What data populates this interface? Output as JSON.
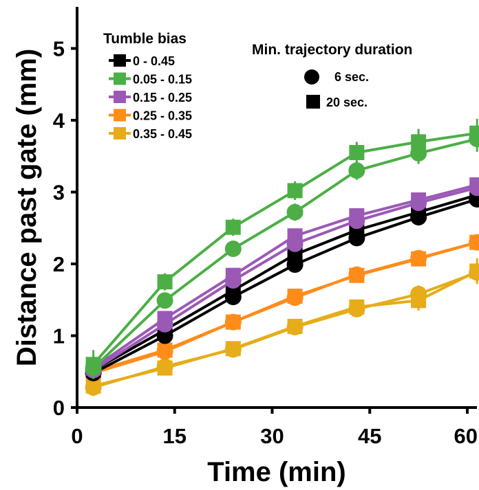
{
  "chart_data": {
    "type": "line",
    "title": "",
    "xlabel": "Time (min)",
    "ylabel": "Distance past gate (mm)",
    "xlim": [
      0,
      62
    ],
    "ylim": [
      0,
      5.5
    ],
    "xticks": [
      0,
      15,
      30,
      45,
      60
    ],
    "yticks": [
      0,
      1,
      2,
      3,
      4,
      5
    ],
    "grid": false,
    "x": [
      2.5,
      13.5,
      24,
      33.5,
      43,
      52.5,
      61.5
    ],
    "legend_tumble": {
      "title": "Tumble bias",
      "placement": "top-left"
    },
    "legend_duration": {
      "title": "Min. trajectory duration",
      "placement": "top-right",
      "entries": [
        {
          "label": "6 sec.",
          "marker": "circle"
        },
        {
          "label": "20 sec.",
          "marker": "square"
        }
      ]
    },
    "series": [
      {
        "name": "0 - 0.45",
        "color": "#000000",
        "marker": "circle",
        "values": [
          0.48,
          1.0,
          1.54,
          1.99,
          2.36,
          2.65,
          2.9
        ],
        "err": [
          0.06,
          0.06,
          0.06,
          0.07,
          0.08,
          0.08,
          0.09
        ]
      },
      {
        "name": "0 - 0.45",
        "color": "#000000",
        "marker": "square",
        "values": [
          0.52,
          1.08,
          1.63,
          2.13,
          2.47,
          2.72,
          2.96
        ],
        "err": [
          0.06,
          0.07,
          0.07,
          0.08,
          0.09,
          0.09,
          0.1
        ]
      },
      {
        "name": "0.05 - 0.15",
        "color": "#4caf45",
        "marker": "circle",
        "values": [
          0.55,
          1.49,
          2.21,
          2.72,
          3.3,
          3.54,
          3.74
        ],
        "err": [
          0.15,
          0.1,
          0.1,
          0.12,
          0.13,
          0.15,
          0.18
        ]
      },
      {
        "name": "0.05 - 0.15",
        "color": "#4caf45",
        "marker": "square",
        "values": [
          0.6,
          1.75,
          2.51,
          3.02,
          3.55,
          3.7,
          3.82
        ],
        "err": [
          0.2,
          0.12,
          0.12,
          0.13,
          0.15,
          0.18,
          0.2
        ]
      },
      {
        "name": "0.15 - 0.25",
        "color": "#9b59b6",
        "marker": "circle",
        "values": [
          0.52,
          1.16,
          1.77,
          2.28,
          2.6,
          2.85,
          3.06
        ],
        "err": [
          0.06,
          0.07,
          0.07,
          0.08,
          0.09,
          0.09,
          0.1
        ]
      },
      {
        "name": "0.15 - 0.25",
        "color": "#9b59b6",
        "marker": "square",
        "values": [
          0.55,
          1.24,
          1.84,
          2.39,
          2.67,
          2.89,
          3.1
        ],
        "err": [
          0.06,
          0.07,
          0.07,
          0.08,
          0.09,
          0.09,
          0.1
        ]
      },
      {
        "name": "0.25 - 0.35",
        "color": "#ff8c1a",
        "marker": "circle",
        "values": [
          0.48,
          0.78,
          1.19,
          1.53,
          1.85,
          2.08,
          2.3
        ],
        "err": [
          0.06,
          0.06,
          0.07,
          0.07,
          0.08,
          0.09,
          0.1
        ]
      },
      {
        "name": "0.25 - 0.35",
        "color": "#ff8c1a",
        "marker": "square",
        "values": [
          0.5,
          0.8,
          1.19,
          1.55,
          1.84,
          2.07,
          2.3
        ],
        "err": [
          0.06,
          0.06,
          0.07,
          0.07,
          0.08,
          0.09,
          0.1
        ]
      },
      {
        "name": "0.35 - 0.45",
        "color": "#e6ac19",
        "marker": "circle",
        "values": [
          0.28,
          0.57,
          0.81,
          1.12,
          1.37,
          1.58,
          1.88
        ],
        "err": [
          0.12,
          0.08,
          0.08,
          0.09,
          0.1,
          0.12,
          0.15
        ]
      },
      {
        "name": "0.35 - 0.45",
        "color": "#e6ac19",
        "marker": "square",
        "values": [
          0.3,
          0.55,
          0.82,
          1.13,
          1.4,
          1.49,
          1.9
        ],
        "err": [
          0.12,
          0.08,
          0.08,
          0.09,
          0.1,
          0.14,
          0.18
        ]
      }
    ]
  }
}
